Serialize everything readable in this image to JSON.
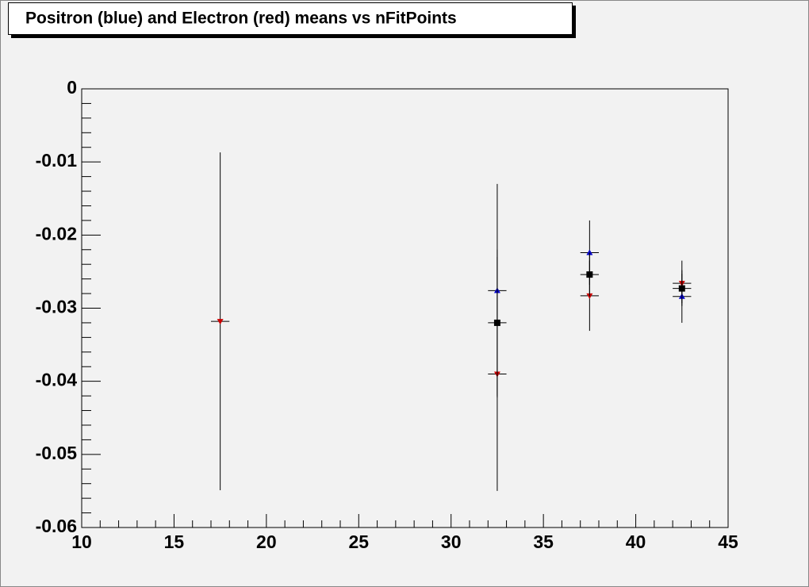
{
  "chart_data": {
    "type": "scatter",
    "title": "Positron (blue) and Electron (red) means vs nFitPoints",
    "xlim": [
      10,
      45
    ],
    "xticks": [
      10,
      15,
      20,
      25,
      30,
      35,
      40,
      45
    ],
    "ylim": [
      -0.06,
      0
    ],
    "yticks": [
      -0.06,
      -0.05,
      -0.04,
      -0.03,
      -0.02,
      -0.01,
      0
    ],
    "series": [
      {
        "color": "#cc0000",
        "marker": "triangle-down",
        "x": [
          17.5,
          32.5,
          37.5,
          42.5
        ],
        "values": [
          -0.0318,
          -0.039,
          -0.0283,
          -0.0266
        ],
        "errors": [
          0.0231,
          0.016,
          0.0048,
          0.0031
        ],
        "x_errors": [
          0.5,
          0.5,
          0.5,
          0.5
        ]
      },
      {
        "color": "#0000cc",
        "marker": "triangle-up",
        "x": [
          32.5,
          37.5,
          42.5
        ],
        "values": [
          -0.0276,
          -0.0224,
          -0.0284
        ],
        "errors": [
          0.0146,
          0.0044,
          0.0036
        ],
        "x_errors": [
          0.5,
          0.5,
          0.5
        ]
      },
      {
        "color": "#000000",
        "marker": "square",
        "x": [
          32.5,
          37.5,
          42.5
        ],
        "values": [
          -0.032,
          -0.0254,
          -0.0273
        ],
        "errors": [
          0.01,
          0.003,
          0.002
        ],
        "x_errors": [
          0.5,
          0.5,
          0.5
        ]
      }
    ]
  }
}
